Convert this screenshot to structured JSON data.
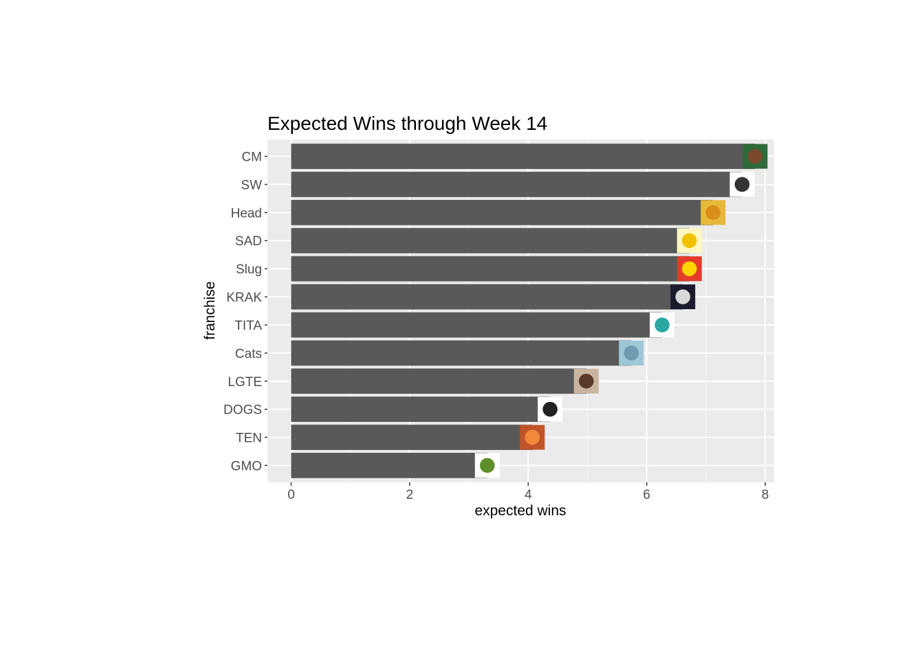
{
  "chart_data": {
    "type": "bar",
    "orientation": "horizontal",
    "title": "Expected Wins through Week 14",
    "xlabel": "expected wins",
    "ylabel": "franchise",
    "xlim": [
      -0.4,
      8.15
    ],
    "xticks": [
      "0",
      "2",
      "4",
      "6",
      "8"
    ],
    "grid": true,
    "legend": "none",
    "bar_color": "#595959",
    "panel_color": "#ebebeb",
    "categories": [
      "CM",
      "SW",
      "Head",
      "SAD",
      "Slug",
      "KRAK",
      "TITA",
      "Cats",
      "LGTE",
      "DOGS",
      "TEN",
      "GMO"
    ],
    "values": [
      7.83,
      7.61,
      7.12,
      6.72,
      6.72,
      6.61,
      6.26,
      5.74,
      4.98,
      4.37,
      4.07,
      3.31
    ],
    "icons": [
      "green-hooded-figure-icon",
      "shield-crest-icon",
      "bomb-face-icon",
      "yellow-duck-icon",
      "boom-comic-icon",
      "kraken-icon",
      "titan-monster-icon",
      "blue-cat-face-icon",
      "bearded-man-photo-icon",
      "diamond-dogs-emblem-icon",
      "roast-food-photo-icon",
      "green-bat-icon"
    ]
  }
}
